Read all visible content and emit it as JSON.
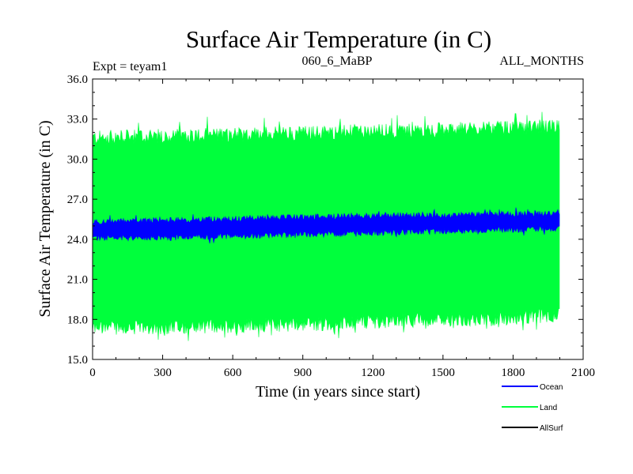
{
  "chart_data": {
    "type": "area",
    "title": "Surface Air Temperature (in C)",
    "subtitle_left": "Expt = teyam1",
    "subtitle_center": "060_6_MaBP",
    "subtitle_right": "ALL_MONTHS",
    "xlabel": "Time (in years since start)",
    "ylabel": "Surface Air Temperature (in C)",
    "xlim": [
      0,
      2100
    ],
    "ylim": [
      15.0,
      36.0
    ],
    "x_ticks": [
      0,
      300,
      600,
      900,
      1200,
      1500,
      1800,
      2100
    ],
    "x_tick_labels": [
      "0",
      "300",
      "600",
      "900",
      "1200",
      "1500",
      "1800",
      "2100"
    ],
    "y_ticks": [
      15.0,
      18.0,
      21.0,
      24.0,
      27.0,
      30.0,
      33.0,
      36.0
    ],
    "y_tick_labels": [
      "15.0",
      "18.0",
      "21.0",
      "24.0",
      "27.0",
      "30.0",
      "33.0",
      "36.0"
    ],
    "x": [
      0,
      250,
      500,
      750,
      1000,
      1250,
      1500,
      1750,
      2000
    ],
    "series": [
      {
        "name": "Land",
        "color": "#00ff3c",
        "lower": [
          17.4,
          17.4,
          17.5,
          17.6,
          17.7,
          17.9,
          18.0,
          18.1,
          18.3
        ],
        "upper": [
          31.6,
          31.7,
          31.8,
          31.9,
          32.0,
          32.1,
          32.2,
          32.3,
          32.4
        ]
      },
      {
        "name": "Ocean",
        "color": "#0000ff",
        "lower": [
          24.1,
          24.1,
          24.2,
          24.3,
          24.4,
          24.5,
          24.6,
          24.7,
          24.8
        ],
        "upper": [
          25.3,
          25.4,
          25.5,
          25.6,
          25.7,
          25.8,
          25.8,
          25.9,
          25.9
        ]
      },
      {
        "name": "AllSurf",
        "color": "#000000",
        "lower": [],
        "upper": []
      }
    ],
    "legend": [
      {
        "label": "Ocean",
        "color": "#0000ff"
      },
      {
        "label": "Land",
        "color": "#00ff3c"
      },
      {
        "label": "AllSurf",
        "color": "#000000"
      }
    ],
    "legend_position": "bottom-right",
    "grid": false
  }
}
